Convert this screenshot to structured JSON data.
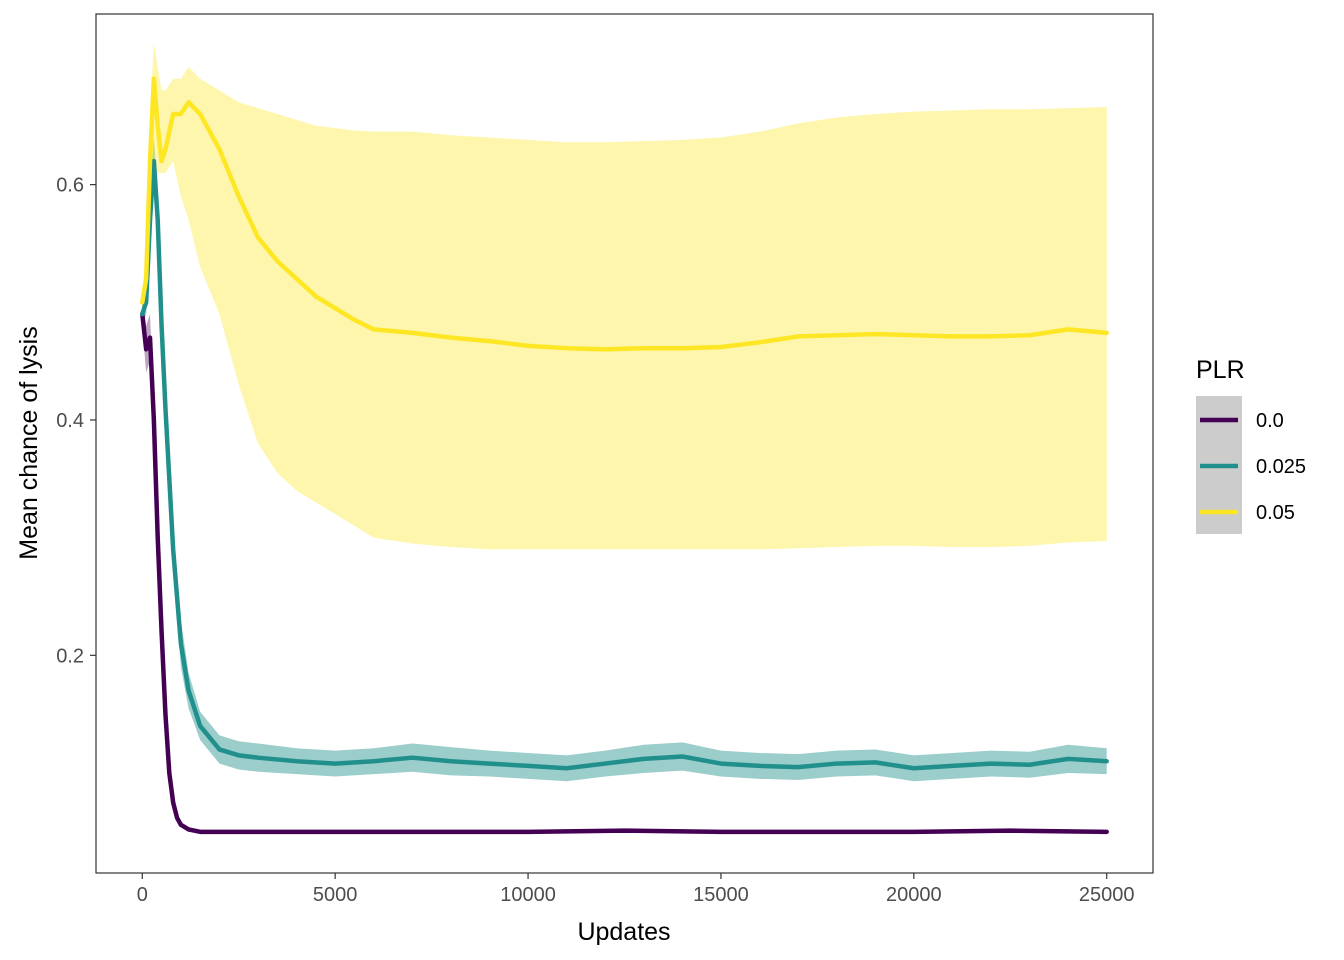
{
  "chart_data": {
    "type": "line",
    "title": "",
    "xlabel": "Updates",
    "ylabel": "Mean chance of lysis",
    "xlim": [
      -1200,
      26200
    ],
    "ylim": [
      0.015,
      0.745
    ],
    "x_ticks": [
      0,
      5000,
      10000,
      15000,
      20000,
      25000
    ],
    "x_tick_labels": [
      "0",
      "5000",
      "10000",
      "15000",
      "20000",
      "25000"
    ],
    "y_ticks": [
      0.2,
      0.4,
      0.6
    ],
    "y_tick_labels": [
      "0.2",
      "0.4",
      "0.6"
    ],
    "grid": false,
    "legend": {
      "title": "PLR",
      "position": "right"
    },
    "series": [
      {
        "name": "0.0",
        "color": "#440154",
        "band_color": "#440154",
        "x": [
          0,
          100,
          200,
          300,
          400,
          500,
          600,
          700,
          800,
          900,
          1000,
          1200,
          1500,
          2000,
          3000,
          5000,
          7000,
          10000,
          12500,
          15000,
          17500,
          20000,
          22500,
          25000
        ],
        "y": [
          0.49,
          0.46,
          0.47,
          0.4,
          0.3,
          0.22,
          0.15,
          0.1,
          0.075,
          0.062,
          0.056,
          0.052,
          0.05,
          0.05,
          0.05,
          0.05,
          0.05,
          0.05,
          0.051,
          0.05,
          0.05,
          0.05,
          0.051,
          0.05
        ],
        "lower": [
          0.48,
          0.44,
          0.45,
          0.39,
          0.29,
          0.21,
          0.145,
          0.097,
          0.073,
          0.06,
          0.054,
          0.05,
          0.049,
          0.049,
          0.049,
          0.049,
          0.049,
          0.049,
          0.05,
          0.049,
          0.049,
          0.049,
          0.05,
          0.049
        ],
        "upper": [
          0.5,
          0.48,
          0.49,
          0.41,
          0.31,
          0.23,
          0.155,
          0.103,
          0.077,
          0.064,
          0.058,
          0.054,
          0.051,
          0.051,
          0.051,
          0.051,
          0.051,
          0.051,
          0.052,
          0.051,
          0.051,
          0.051,
          0.052,
          0.051
        ]
      },
      {
        "name": "0.025",
        "color": "#21908C",
        "band_color": "#21908C",
        "x": [
          0,
          100,
          200,
          300,
          400,
          500,
          600,
          700,
          800,
          1000,
          1200,
          1500,
          2000,
          2500,
          3000,
          4000,
          5000,
          6000,
          7000,
          8000,
          9000,
          10000,
          11000,
          12000,
          13000,
          14000,
          15000,
          16000,
          17000,
          18000,
          19000,
          20000,
          21000,
          22000,
          23000,
          24000,
          25000
        ],
        "y": [
          0.49,
          0.5,
          0.57,
          0.62,
          0.57,
          0.48,
          0.41,
          0.35,
          0.29,
          0.21,
          0.17,
          0.14,
          0.12,
          0.115,
          0.113,
          0.11,
          0.108,
          0.11,
          0.113,
          0.11,
          0.108,
          0.106,
          0.104,
          0.108,
          0.112,
          0.114,
          0.108,
          0.106,
          0.105,
          0.108,
          0.109,
          0.104,
          0.106,
          0.108,
          0.107,
          0.112,
          0.11
        ],
        "lower": [
          0.48,
          0.49,
          0.55,
          0.6,
          0.55,
          0.46,
          0.39,
          0.33,
          0.27,
          0.19,
          0.155,
          0.128,
          0.108,
          0.103,
          0.101,
          0.099,
          0.097,
          0.099,
          0.101,
          0.098,
          0.097,
          0.095,
          0.093,
          0.097,
          0.1,
          0.102,
          0.097,
          0.095,
          0.094,
          0.097,
          0.098,
          0.093,
          0.095,
          0.097,
          0.096,
          0.1,
          0.099
        ],
        "upper": [
          0.5,
          0.51,
          0.59,
          0.64,
          0.59,
          0.5,
          0.43,
          0.37,
          0.31,
          0.23,
          0.185,
          0.152,
          0.132,
          0.127,
          0.125,
          0.121,
          0.119,
          0.121,
          0.125,
          0.122,
          0.119,
          0.117,
          0.115,
          0.119,
          0.124,
          0.126,
          0.119,
          0.117,
          0.116,
          0.119,
          0.12,
          0.115,
          0.117,
          0.119,
          0.118,
          0.124,
          0.121
        ]
      },
      {
        "name": "0.05",
        "color": "#FDE725",
        "band_color": "#FDE725",
        "x": [
          0,
          100,
          200,
          300,
          400,
          500,
          600,
          800,
          1000,
          1200,
          1500,
          2000,
          2500,
          3000,
          3500,
          4000,
          4500,
          5000,
          5500,
          6000,
          7000,
          8000,
          9000,
          10000,
          11000,
          12000,
          13000,
          14000,
          15000,
          16000,
          17000,
          18000,
          19000,
          20000,
          21000,
          22000,
          23000,
          24000,
          25000
        ],
        "y": [
          0.5,
          0.52,
          0.62,
          0.69,
          0.65,
          0.62,
          0.63,
          0.66,
          0.66,
          0.67,
          0.66,
          0.63,
          0.59,
          0.555,
          0.535,
          0.52,
          0.505,
          0.495,
          0.485,
          0.477,
          0.474,
          0.47,
          0.467,
          0.463,
          0.461,
          0.46,
          0.461,
          0.461,
          0.462,
          0.466,
          0.471,
          0.472,
          0.473,
          0.472,
          0.471,
          0.471,
          0.472,
          0.477,
          0.474
        ],
        "lower": [
          0.49,
          0.5,
          0.56,
          0.61,
          0.61,
          0.61,
          0.61,
          0.62,
          0.59,
          0.57,
          0.53,
          0.49,
          0.43,
          0.38,
          0.355,
          0.34,
          0.33,
          0.32,
          0.31,
          0.3,
          0.295,
          0.292,
          0.29,
          0.29,
          0.29,
          0.29,
          0.29,
          0.29,
          0.29,
          0.29,
          0.291,
          0.292,
          0.293,
          0.293,
          0.292,
          0.292,
          0.293,
          0.296,
          0.297
        ],
        "upper": [
          0.51,
          0.54,
          0.66,
          0.72,
          0.7,
          0.68,
          0.68,
          0.69,
          0.69,
          0.7,
          0.69,
          0.68,
          0.67,
          0.665,
          0.66,
          0.655,
          0.65,
          0.648,
          0.646,
          0.645,
          0.645,
          0.642,
          0.64,
          0.638,
          0.636,
          0.636,
          0.637,
          0.638,
          0.64,
          0.645,
          0.652,
          0.657,
          0.66,
          0.662,
          0.663,
          0.664,
          0.664,
          0.665,
          0.666
        ]
      }
    ]
  }
}
